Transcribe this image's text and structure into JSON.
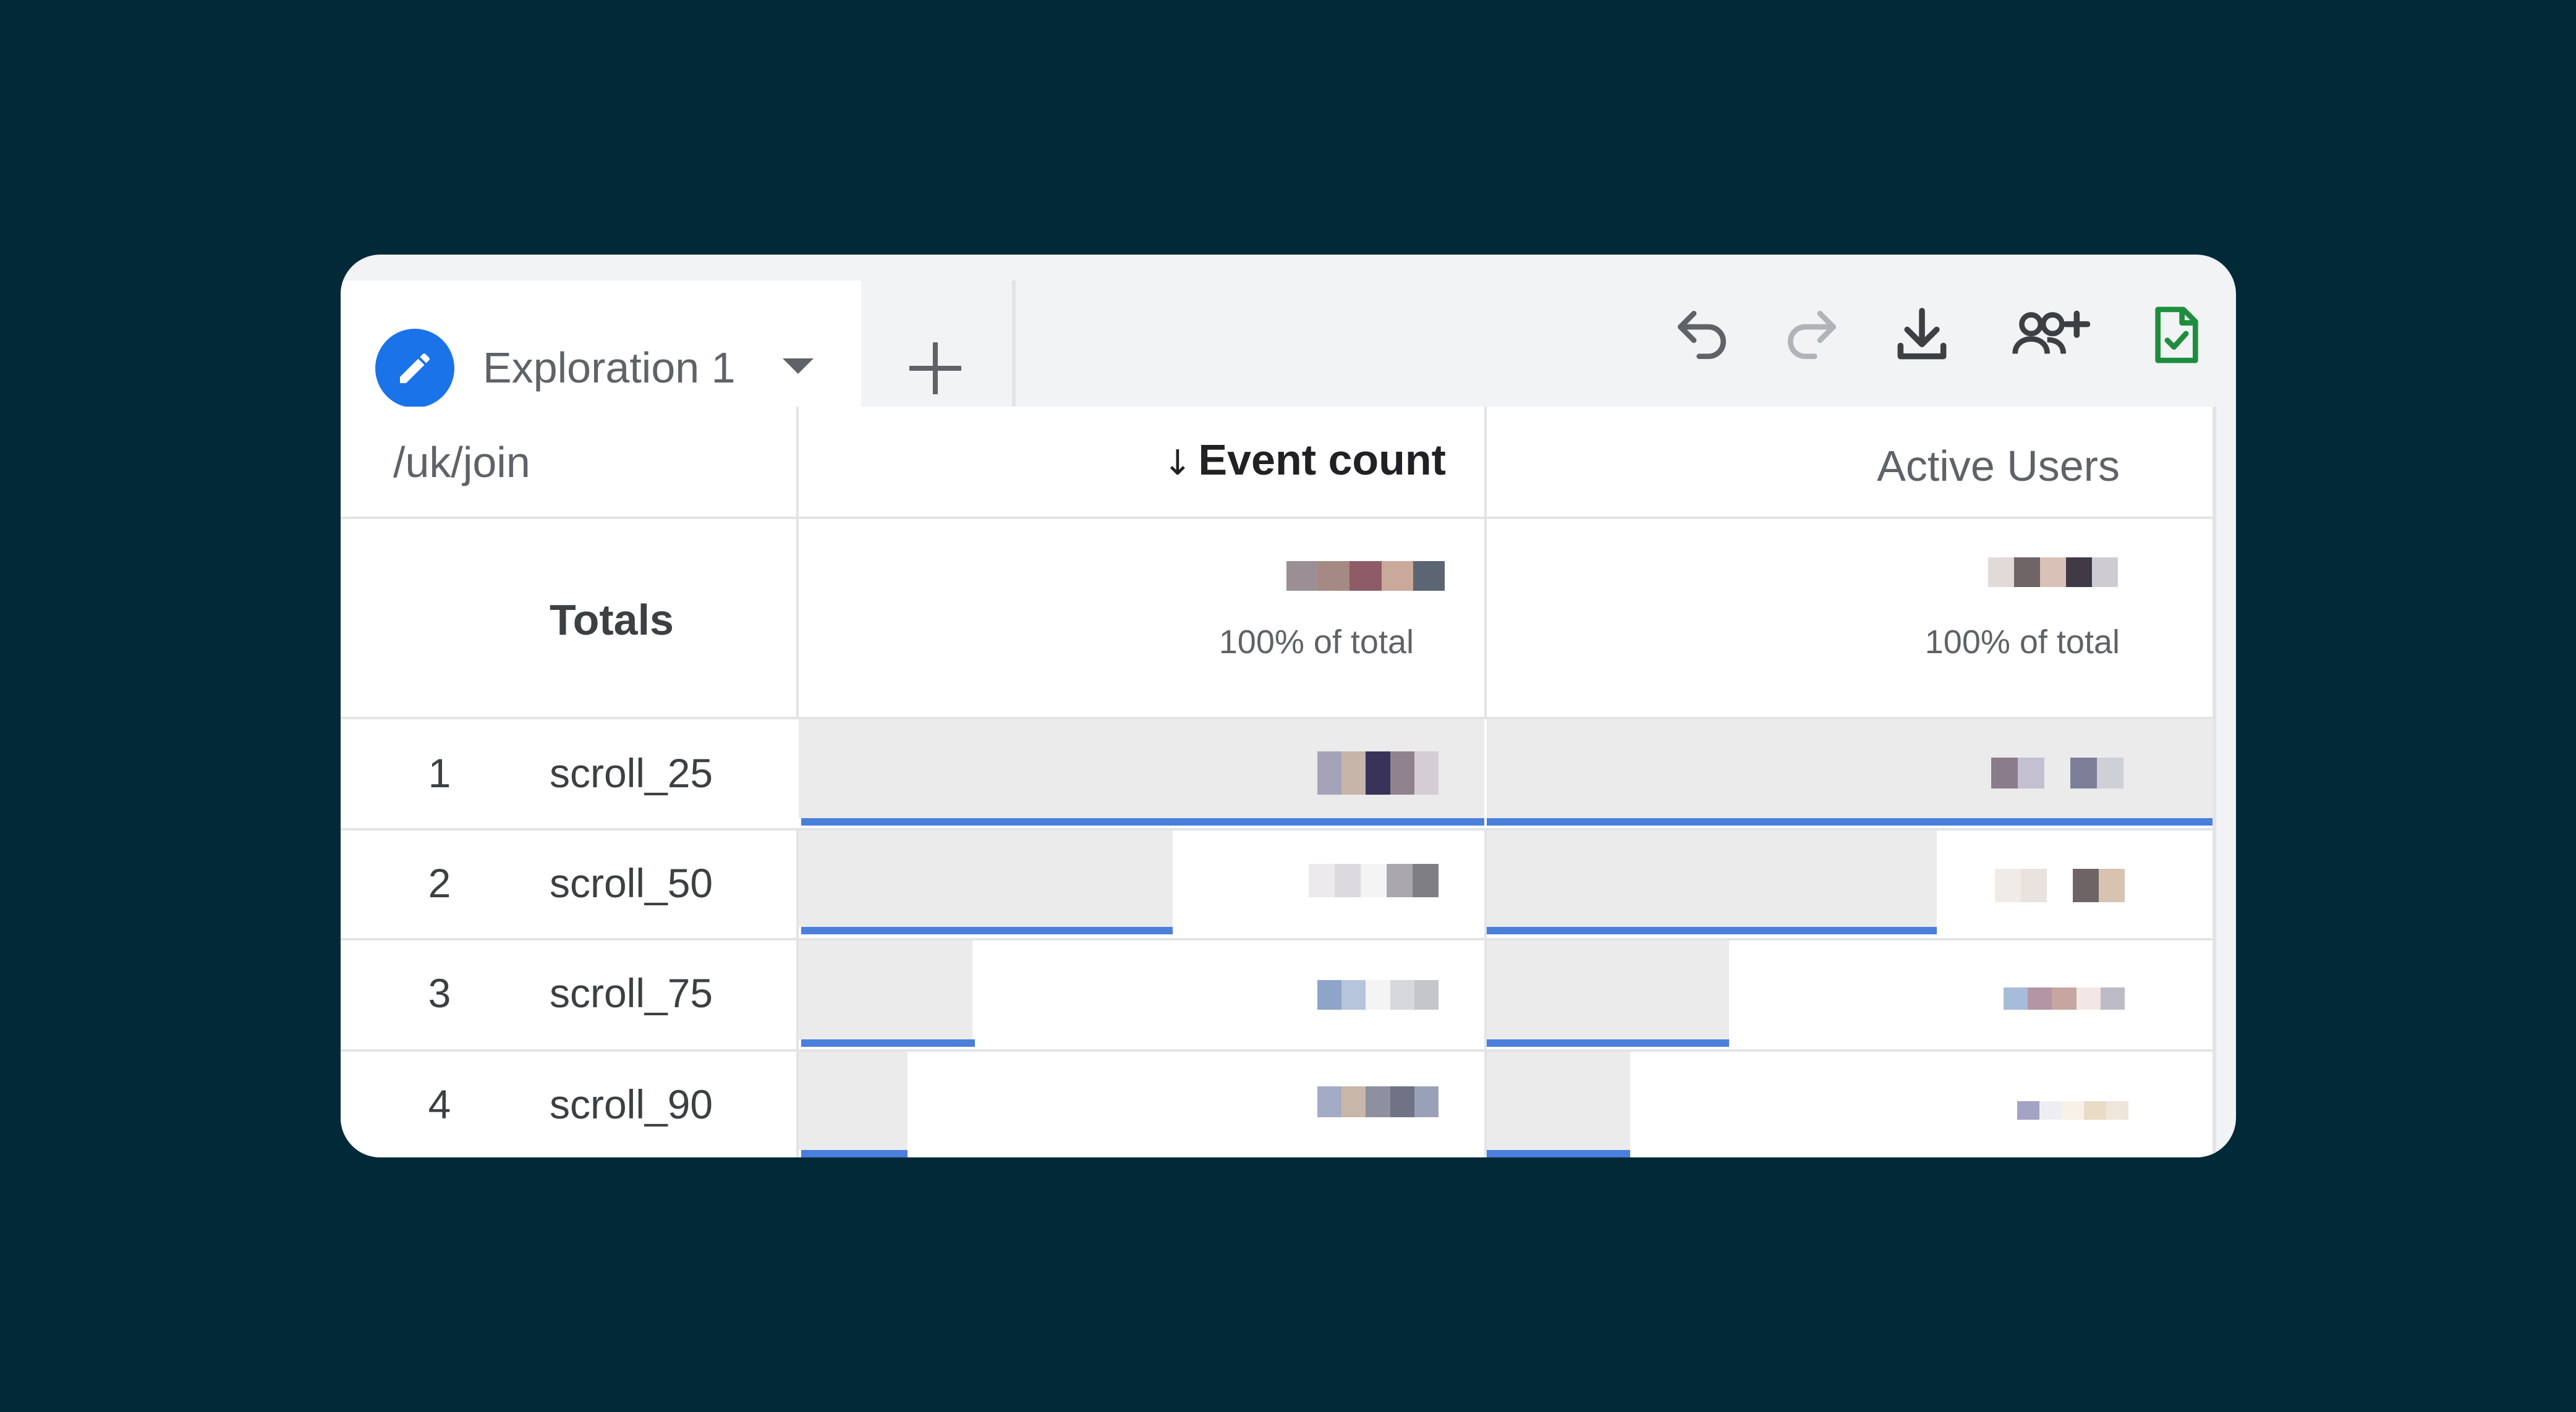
{
  "tab": {
    "title": "Exploration 1",
    "edit_icon": "pencil-icon",
    "caret_icon": "caret-down-icon"
  },
  "add_tab_icon": "plus-icon",
  "toolbar": {
    "icons": [
      "undo-icon",
      "redo-icon",
      "download-icon",
      "share-users-icon",
      "saved-document-icon"
    ]
  },
  "table": {
    "dimension_header": "/uk/join",
    "sort_arrow": "↓",
    "columns": [
      "Event count",
      "Active Users"
    ],
    "totals": {
      "label": "Totals",
      "event_count_pct": "100% of total",
      "active_users_pct": "100% of total"
    },
    "rows": [
      {
        "num": "1",
        "name": "scroll_25",
        "event_count_fraction": 1.0,
        "active_users_fraction": 1.0
      },
      {
        "num": "2",
        "name": "scroll_50",
        "event_count_fraction": 0.55,
        "active_users_fraction": 0.62
      },
      {
        "num": "3",
        "name": "scroll_75",
        "event_count_fraction": 0.26,
        "active_users_fraction": 0.33
      },
      {
        "num": "4",
        "name": "scroll_90",
        "event_count_fraction": 0.16,
        "active_users_fraction": 0.2
      }
    ]
  },
  "colors": {
    "background": "#012938",
    "accent": "#1a73e8",
    "bar": "#4a7fdc",
    "saved_icon": "#1e8e3e"
  }
}
